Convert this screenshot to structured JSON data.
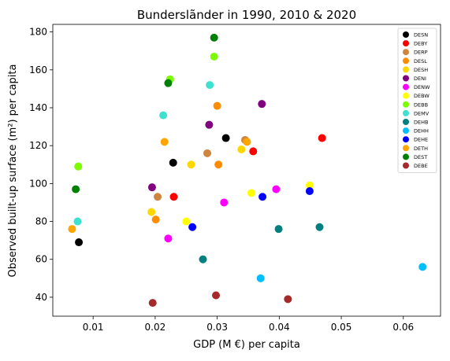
{
  "chart_data": {
    "type": "scatter",
    "title": "Bunderslãnder in 1990, 2010 & 2020",
    "xlabel": "GDP (M €) per capita",
    "ylabel": "Observed built-up surface (m²) per capita",
    "xlim": [
      0.0035,
      0.066
    ],
    "ylim": [
      30,
      184
    ],
    "xticks": [
      0.01,
      0.02,
      0.03,
      0.04,
      0.05,
      0.06
    ],
    "xtick_labels": [
      "0.01",
      "0.02",
      "0.03",
      "0.04",
      "0.05",
      "0.06"
    ],
    "yticks": [
      40,
      60,
      80,
      100,
      120,
      140,
      160,
      180
    ],
    "ytick_labels": [
      "40",
      "60",
      "80",
      "100",
      "120",
      "140",
      "160",
      "180"
    ],
    "grid": false,
    "legend_position": "top-right",
    "series": [
      {
        "name": "DESN",
        "color": "#000000",
        "points": [
          [
            0.0077,
            69
          ],
          [
            0.0229,
            111
          ],
          [
            0.0314,
            124
          ]
        ]
      },
      {
        "name": "DEBY",
        "color": "#ff0000",
        "points": [
          [
            0.023,
            93
          ],
          [
            0.0358,
            117
          ],
          [
            0.0469,
            124
          ]
        ]
      },
      {
        "name": "DERP",
        "color": "#cd853f",
        "points": [
          [
            0.0204,
            93
          ],
          [
            0.0284,
            116
          ],
          [
            0.0345,
            123
          ]
        ]
      },
      {
        "name": "DESL",
        "color": "#ff8c00",
        "points": [
          [
            0.0201,
            81
          ],
          [
            0.0302,
            110
          ],
          [
            0.03,
            141
          ]
        ]
      },
      {
        "name": "DESH",
        "color": "#ffd700",
        "points": [
          [
            0.0194,
            85
          ],
          [
            0.0258,
            110
          ],
          [
            0.0339,
            118
          ]
        ]
      },
      {
        "name": "DENI",
        "color": "#800080",
        "points": [
          [
            0.0195,
            98
          ],
          [
            0.0287,
            131
          ],
          [
            0.0372,
            142
          ]
        ]
      },
      {
        "name": "DENW",
        "color": "#ff00ff",
        "points": [
          [
            0.0221,
            71
          ],
          [
            0.0311,
            90
          ],
          [
            0.0395,
            97
          ]
        ]
      },
      {
        "name": "DEBW",
        "color": "#ffff00",
        "points": [
          [
            0.025,
            80
          ],
          [
            0.0355,
            95
          ],
          [
            0.0449,
            99
          ]
        ]
      },
      {
        "name": "DEBB",
        "color": "#7cfc00",
        "points": [
          [
            0.0076,
            109
          ],
          [
            0.0224,
            155
          ],
          [
            0.0295,
            167
          ]
        ]
      },
      {
        "name": "DEMV",
        "color": "#40e0d0",
        "points": [
          [
            0.0075,
            80
          ],
          [
            0.0213,
            136
          ],
          [
            0.0288,
            152
          ]
        ]
      },
      {
        "name": "DEHB",
        "color": "#008080",
        "points": [
          [
            0.0277,
            60
          ],
          [
            0.0399,
            76
          ],
          [
            0.0465,
            77
          ]
        ]
      },
      {
        "name": "DEHH",
        "color": "#00bfff",
        "points": [
          [
            0.037,
            50
          ],
          [
            0.0631,
            56
          ]
        ]
      },
      {
        "name": "DEHE",
        "color": "#0000ff",
        "points": [
          [
            0.026,
            77
          ],
          [
            0.0373,
            93
          ],
          [
            0.0449,
            96
          ]
        ]
      },
      {
        "name": "DETH",
        "color": "#ffa500",
        "points": [
          [
            0.0066,
            76
          ],
          [
            0.0215,
            122
          ],
          [
            0.0348,
            122
          ]
        ]
      },
      {
        "name": "DEST",
        "color": "#008000",
        "points": [
          [
            0.0072,
            97
          ],
          [
            0.0221,
            153
          ],
          [
            0.0295,
            177
          ]
        ]
      },
      {
        "name": "DEBE",
        "color": "#a52a2a",
        "points": [
          [
            0.0196,
            37
          ],
          [
            0.0298,
            41
          ],
          [
            0.0414,
            39
          ]
        ]
      }
    ]
  }
}
